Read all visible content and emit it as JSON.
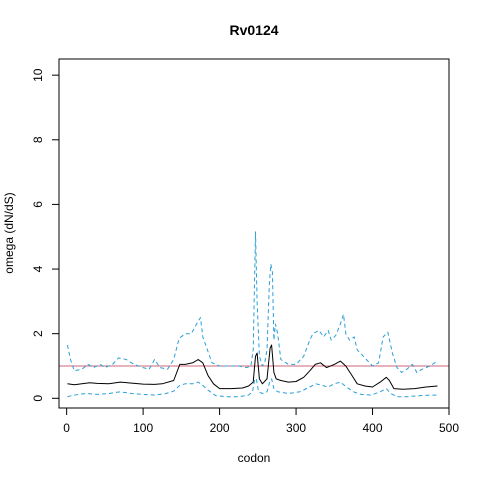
{
  "chart_data": {
    "type": "line",
    "title": "Rv0124",
    "xlabel": "codon",
    "ylabel": "omega (dN/dS)",
    "xlim": [
      -10,
      500
    ],
    "ylim": [
      -0.3,
      10.5
    ],
    "x_ticks": [
      0,
      100,
      200,
      300,
      400,
      500
    ],
    "y_ticks": [
      0,
      2,
      4,
      6,
      8,
      10
    ],
    "grid": false,
    "reference_line": {
      "y": 1,
      "color": "#cc6677"
    },
    "colors": {
      "mean": "#000000",
      "bounds": "#2a9fd6"
    },
    "series": [
      {
        "id": "mean",
        "style": "solid",
        "points": [
          [
            1,
            0.45
          ],
          [
            10,
            0.42
          ],
          [
            20,
            0.45
          ],
          [
            30,
            0.48
          ],
          [
            40,
            0.46
          ],
          [
            55,
            0.45
          ],
          [
            70,
            0.5
          ],
          [
            85,
            0.47
          ],
          [
            100,
            0.44
          ],
          [
            115,
            0.43
          ],
          [
            125,
            0.45
          ],
          [
            140,
            0.55
          ],
          [
            148,
            1.05
          ],
          [
            155,
            1.05
          ],
          [
            165,
            1.1
          ],
          [
            172,
            1.2
          ],
          [
            178,
            1.1
          ],
          [
            185,
            0.7
          ],
          [
            192,
            0.45
          ],
          [
            200,
            0.3
          ],
          [
            215,
            0.3
          ],
          [
            230,
            0.32
          ],
          [
            238,
            0.38
          ],
          [
            244,
            0.5
          ],
          [
            247,
            1.3
          ],
          [
            249,
            1.4
          ],
          [
            252,
            0.6
          ],
          [
            256,
            0.45
          ],
          [
            262,
            0.6
          ],
          [
            266,
            1.55
          ],
          [
            268,
            1.65
          ],
          [
            271,
            0.8
          ],
          [
            274,
            0.6
          ],
          [
            280,
            0.55
          ],
          [
            290,
            0.5
          ],
          [
            300,
            0.52
          ],
          [
            310,
            0.65
          ],
          [
            318,
            0.85
          ],
          [
            325,
            1.05
          ],
          [
            332,
            1.1
          ],
          [
            340,
            0.95
          ],
          [
            350,
            1.05
          ],
          [
            358,
            1.15
          ],
          [
            365,
            1.0
          ],
          [
            372,
            0.75
          ],
          [
            380,
            0.45
          ],
          [
            390,
            0.38
          ],
          [
            400,
            0.35
          ],
          [
            410,
            0.5
          ],
          [
            418,
            0.65
          ],
          [
            422,
            0.55
          ],
          [
            428,
            0.3
          ],
          [
            440,
            0.28
          ],
          [
            455,
            0.3
          ],
          [
            470,
            0.35
          ],
          [
            485,
            0.38
          ]
        ]
      },
      {
        "id": "upper",
        "style": "dashed",
        "points": [
          [
            1,
            1.65
          ],
          [
            5,
            1.2
          ],
          [
            10,
            0.85
          ],
          [
            20,
            0.9
          ],
          [
            28,
            1.05
          ],
          [
            35,
            0.95
          ],
          [
            44,
            1.05
          ],
          [
            50,
            0.95
          ],
          [
            60,
            1.05
          ],
          [
            68,
            1.25
          ],
          [
            78,
            1.2
          ],
          [
            88,
            1.05
          ],
          [
            100,
            0.95
          ],
          [
            108,
            0.9
          ],
          [
            115,
            1.2
          ],
          [
            122,
            0.95
          ],
          [
            132,
            0.9
          ],
          [
            140,
            1.2
          ],
          [
            147,
            1.85
          ],
          [
            155,
            2.0
          ],
          [
            163,
            2.0
          ],
          [
            170,
            2.3
          ],
          [
            175,
            2.5
          ],
          [
            178,
            1.9
          ],
          [
            184,
            1.5
          ],
          [
            190,
            1.1
          ],
          [
            200,
            1.0
          ],
          [
            215,
            1.0
          ],
          [
            225,
            1.0
          ],
          [
            235,
            0.95
          ],
          [
            241,
            1.0
          ],
          [
            244,
            1.5
          ],
          [
            246,
            4.0
          ],
          [
            247,
            5.15
          ],
          [
            249,
            3.0
          ],
          [
            252,
            1.3
          ],
          [
            256,
            1.0
          ],
          [
            259,
            1.1
          ],
          [
            262,
            1.5
          ],
          [
            265,
            3.5
          ],
          [
            267,
            4.15
          ],
          [
            269,
            3.9
          ],
          [
            271,
            1.8
          ],
          [
            273,
            2.3
          ],
          [
            276,
            2.0
          ],
          [
            280,
            1.2
          ],
          [
            290,
            1.05
          ],
          [
            300,
            1.05
          ],
          [
            310,
            1.3
          ],
          [
            318,
            1.8
          ],
          [
            322,
            2.0
          ],
          [
            330,
            2.1
          ],
          [
            336,
            1.9
          ],
          [
            342,
            2.1
          ],
          [
            346,
            1.8
          ],
          [
            352,
            1.95
          ],
          [
            358,
            2.3
          ],
          [
            362,
            2.6
          ],
          [
            365,
            2.0
          ],
          [
            370,
            1.8
          ],
          [
            376,
            1.9
          ],
          [
            380,
            1.5
          ],
          [
            388,
            1.3
          ],
          [
            400,
            1.0
          ],
          [
            408,
            1.1
          ],
          [
            414,
            1.9
          ],
          [
            420,
            2.05
          ],
          [
            426,
            1.4
          ],
          [
            432,
            0.95
          ],
          [
            438,
            0.8
          ],
          [
            445,
            0.9
          ],
          [
            452,
            1.05
          ],
          [
            458,
            0.8
          ],
          [
            465,
            0.9
          ],
          [
            475,
            1.0
          ],
          [
            485,
            1.15
          ]
        ]
      },
      {
        "id": "lower",
        "style": "dashed",
        "points": [
          [
            1,
            0.05
          ],
          [
            10,
            0.1
          ],
          [
            25,
            0.15
          ],
          [
            40,
            0.12
          ],
          [
            55,
            0.15
          ],
          [
            70,
            0.2
          ],
          [
            85,
            0.15
          ],
          [
            100,
            0.12
          ],
          [
            115,
            0.1
          ],
          [
            130,
            0.15
          ],
          [
            140,
            0.22
          ],
          [
            148,
            0.4
          ],
          [
            155,
            0.45
          ],
          [
            165,
            0.45
          ],
          [
            172,
            0.5
          ],
          [
            178,
            0.4
          ],
          [
            185,
            0.25
          ],
          [
            195,
            0.08
          ],
          [
            210,
            0.05
          ],
          [
            225,
            0.05
          ],
          [
            238,
            0.1
          ],
          [
            243,
            0.2
          ],
          [
            246,
            0.6
          ],
          [
            248,
            0.6
          ],
          [
            251,
            0.2
          ],
          [
            256,
            0.15
          ],
          [
            262,
            0.2
          ],
          [
            266,
            0.55
          ],
          [
            268,
            0.6
          ],
          [
            271,
            0.3
          ],
          [
            276,
            0.2
          ],
          [
            290,
            0.15
          ],
          [
            305,
            0.2
          ],
          [
            318,
            0.35
          ],
          [
            326,
            0.45
          ],
          [
            334,
            0.4
          ],
          [
            342,
            0.35
          ],
          [
            350,
            0.45
          ],
          [
            358,
            0.5
          ],
          [
            366,
            0.35
          ],
          [
            375,
            0.2
          ],
          [
            385,
            0.12
          ],
          [
            398,
            0.1
          ],
          [
            410,
            0.2
          ],
          [
            418,
            0.3
          ],
          [
            424,
            0.15
          ],
          [
            432,
            0.05
          ],
          [
            445,
            0.05
          ],
          [
            460,
            0.08
          ],
          [
            475,
            0.1
          ],
          [
            485,
            0.1
          ]
        ]
      }
    ]
  }
}
